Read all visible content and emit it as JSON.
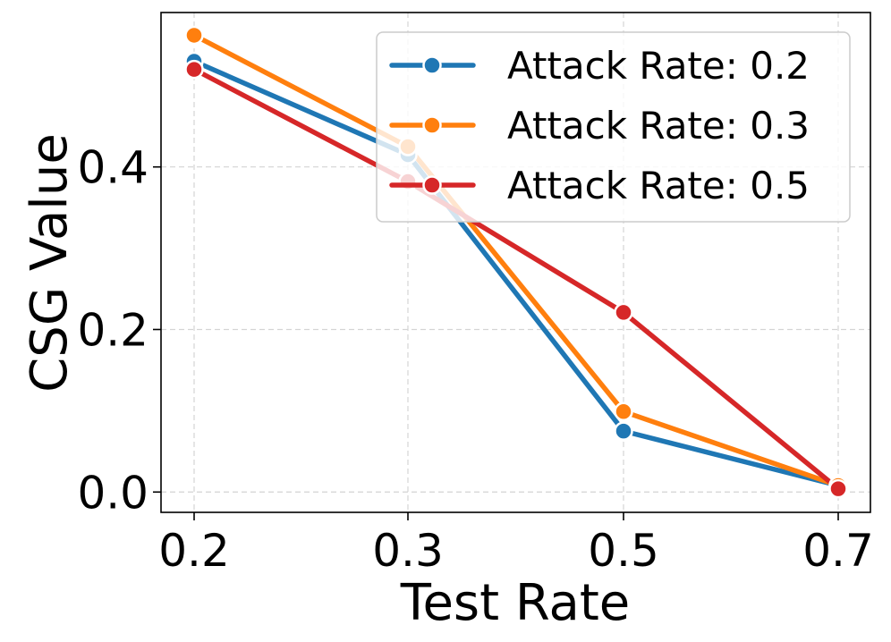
{
  "chart_data": {
    "type": "line",
    "categories": [
      "0.2",
      "0.3",
      "0.5",
      "0.7"
    ],
    "xlabel": "Test Rate",
    "ylabel": "CSG Value",
    "ylim": [
      -0.025,
      0.59
    ],
    "yticks": [
      0.0,
      0.2,
      0.4
    ],
    "ytick_labels": [
      "0.0",
      "0.2",
      "0.4"
    ],
    "grid": true,
    "legend_position": "top-right",
    "series": [
      {
        "name": "Attack Rate: 0.2",
        "color": "#1f77b4",
        "values": [
          0.53,
          0.415,
          0.075,
          0.008
        ]
      },
      {
        "name": "Attack Rate: 0.3",
        "color": "#ff7f0e",
        "values": [
          0.562,
          0.425,
          0.099,
          0.008
        ]
      },
      {
        "name": "Attack Rate: 0.5",
        "color": "#d62728",
        "values": [
          0.52,
          0.382,
          0.221,
          0.004
        ]
      }
    ]
  }
}
